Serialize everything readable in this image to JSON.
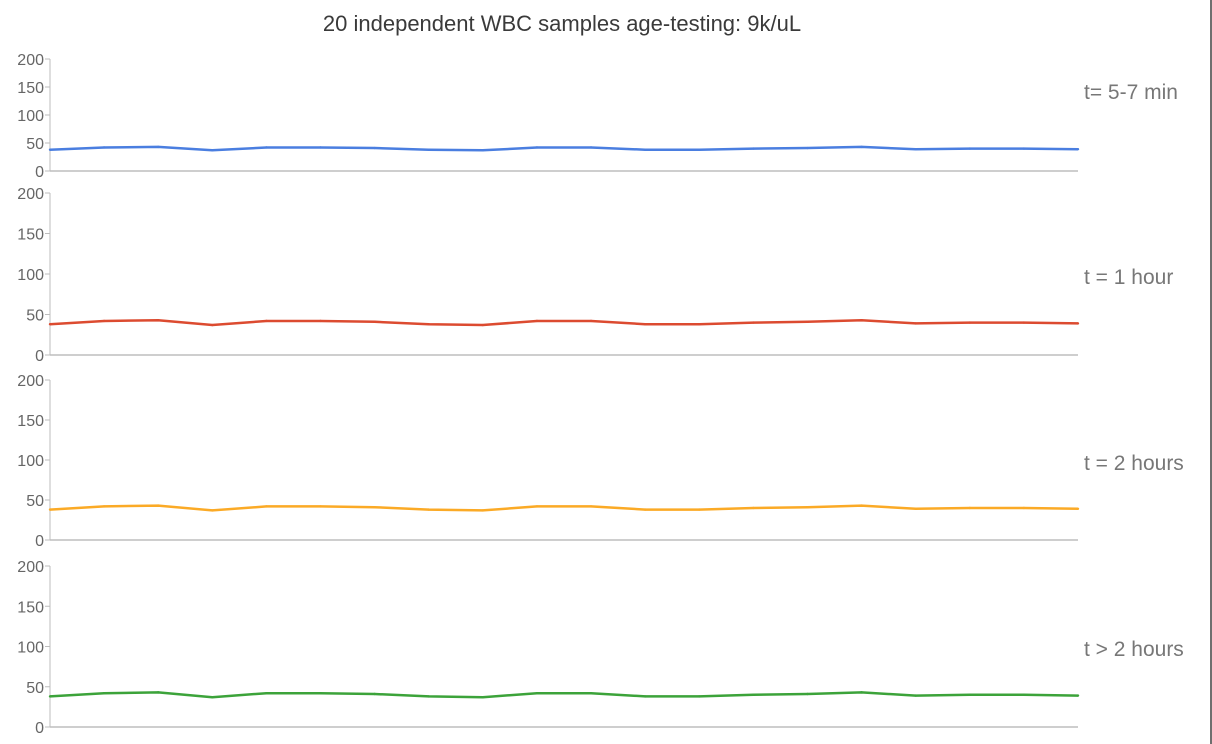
{
  "chart_data": {
    "type": "line",
    "title": "20 independent WBC samples age-testing: 9k/uL",
    "ylim": [
      0,
      200
    ],
    "yticks": [
      "0",
      "50",
      "100",
      "150",
      "200"
    ],
    "x": [
      1,
      2,
      3,
      4,
      5,
      6,
      7,
      8,
      9,
      10,
      11,
      12,
      13,
      14,
      15,
      16,
      17,
      18,
      19,
      20
    ],
    "grid": false,
    "panels": [
      {
        "label": "t= 5-7 min",
        "color": "#4a7ee0",
        "values": [
          38,
          42,
          43,
          37,
          42,
          42,
          41,
          38,
          37,
          42,
          42,
          38,
          38,
          40,
          41,
          43,
          39,
          40,
          40,
          39
        ]
      },
      {
        "label": "t = 1 hour",
        "color": "#dc4b30",
        "values": [
          38,
          42,
          43,
          37,
          42,
          42,
          41,
          38,
          37,
          42,
          42,
          38,
          38,
          40,
          41,
          43,
          39,
          40,
          40,
          39
        ]
      },
      {
        "label": "t = 2 hours",
        "color": "#fbaa26",
        "values": [
          38,
          42,
          43,
          37,
          42,
          42,
          41,
          38,
          37,
          42,
          42,
          38,
          38,
          40,
          41,
          43,
          39,
          40,
          40,
          39
        ]
      },
      {
        "label": "t > 2 hours",
        "color": "#3ca33a",
        "values": [
          38,
          42,
          43,
          37,
          42,
          42,
          41,
          38,
          37,
          42,
          42,
          38,
          38,
          40,
          41,
          43,
          39,
          40,
          40,
          39
        ]
      }
    ]
  }
}
